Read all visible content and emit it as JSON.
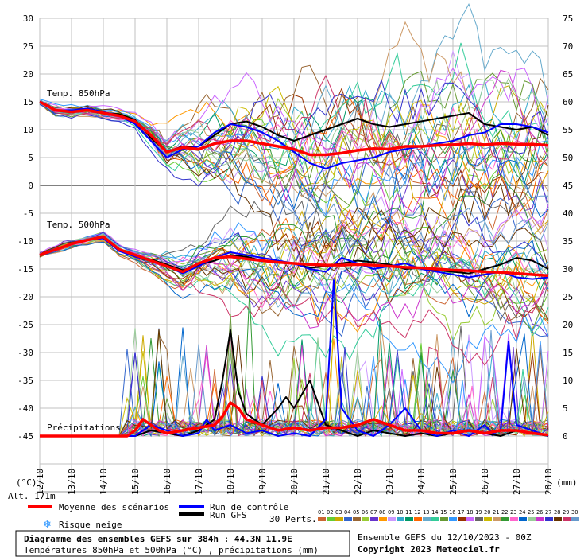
{
  "chart_data": {
    "type": "line",
    "title": "Diagramme des ensembles GEFS sur 384h : 44.3N 11.9E",
    "subtitle": "Températures 850hPa et 500hPa (°C) , précipitations (mm)",
    "left_axis": {
      "unit": "(°C)",
      "ylim": [
        -55,
        30
      ],
      "ticks": [
        30,
        25,
        20,
        15,
        10,
        5,
        0,
        -5,
        -10,
        -15,
        -20,
        -25,
        -30,
        -35,
        -40,
        -45
      ]
    },
    "right_axis": {
      "unit": "(mm)",
      "ylim": [
        -10,
        75
      ],
      "ticks": [
        75,
        70,
        65,
        60,
        55,
        50,
        45,
        40,
        35,
        30,
        25,
        20,
        15,
        10,
        5,
        0
      ]
    },
    "x_ticks": [
      "12/10",
      "13/10",
      "14/10",
      "15/10",
      "16/10",
      "17/10",
      "18/10",
      "19/10",
      "20/10",
      "21/10",
      "22/10",
      "23/10",
      "24/10",
      "25/10",
      "26/10",
      "27/10",
      "28/10"
    ],
    "altitude": "Alt. 171m",
    "panels": {
      "t850": "Temp. 850hPa",
      "t500": "Temp. 500hPa",
      "precip": "Précipitations"
    },
    "grid": true,
    "legend": {
      "mean": "Moyenne des scénarios",
      "control": "Run de contrôle",
      "gfs": "Run GFS",
      "snow": "Risque neige",
      "perts_label": "30 Perts.",
      "perts": [
        "01",
        "02",
        "03",
        "04",
        "05",
        "06",
        "07",
        "08",
        "09",
        "10",
        "11",
        "12",
        "13",
        "14",
        "15",
        "16",
        "17",
        "18",
        "19",
        "20",
        "21",
        "22",
        "23",
        "24",
        "25",
        "26",
        "27",
        "28",
        "29",
        "30"
      ]
    },
    "info": {
      "ensemble": "Ensemble GEFS du 12/10/2023 - 00Z",
      "copyright": "Copyright 2023 Meteociel.fr"
    },
    "colors": {
      "mean": "#ff0000",
      "control": "#0000ff",
      "gfs": "#000000",
      "perts": [
        "#cc6633",
        "#66cc33",
        "#ccaa00",
        "#3366cc",
        "#996633",
        "#99cc33",
        "#6633cc",
        "#ff9900",
        "#cc99ff",
        "#33aacc",
        "#009966",
        "#ff6600",
        "#66aacc",
        "#33cc99",
        "#669933",
        "#3399ff",
        "#993300",
        "#cc66ff",
        "#666666",
        "#ccbb00",
        "#cc9966",
        "#339933",
        "#ff66cc",
        "#0066cc",
        "#99cc99",
        "#cc33cc",
        "#3333cc",
        "#663300",
        "#cc3366",
        "#6699cc"
      ]
    },
    "series": {
      "t850_mean": [
        [
          0,
          15
        ],
        [
          0.5,
          13.5
        ],
        [
          1,
          13.2
        ],
        [
          1.5,
          13.5
        ],
        [
          2,
          13
        ],
        [
          2.5,
          12.5
        ],
        [
          3,
          11.5
        ],
        [
          3.5,
          9
        ],
        [
          4,
          6
        ],
        [
          4.5,
          6.8
        ],
        [
          5,
          6.5
        ],
        [
          5.5,
          7.5
        ],
        [
          6,
          8
        ],
        [
          6.5,
          8
        ],
        [
          7,
          7.5
        ],
        [
          7.5,
          7
        ],
        [
          8,
          6.5
        ],
        [
          8.5,
          5.5
        ],
        [
          9,
          5.5
        ],
        [
          9.5,
          5.8
        ],
        [
          10,
          6.3
        ],
        [
          10.5,
          6.6
        ],
        [
          11,
          6.5
        ],
        [
          11.5,
          7
        ],
        [
          12,
          7
        ],
        [
          12.5,
          7.2
        ],
        [
          13,
          7.3
        ],
        [
          13.5,
          7.5
        ],
        [
          14,
          7.3
        ],
        [
          14.5,
          7.5
        ],
        [
          15,
          7.4
        ],
        [
          15.5,
          7.4
        ],
        [
          16,
          7.2
        ]
      ],
      "t850_control": [
        [
          0,
          15
        ],
        [
          0.5,
          13.5
        ],
        [
          1,
          13.5
        ],
        [
          1.5,
          13.8
        ],
        [
          2,
          13.2
        ],
        [
          2.5,
          12.5
        ],
        [
          3,
          11
        ],
        [
          3.5,
          8
        ],
        [
          4,
          5
        ],
        [
          4.5,
          6.5
        ],
        [
          5,
          7
        ],
        [
          5.5,
          9.5
        ],
        [
          6,
          11
        ],
        [
          6.5,
          10.5
        ],
        [
          7,
          9.5
        ],
        [
          7.5,
          8
        ],
        [
          8,
          6
        ],
        [
          8.5,
          4
        ],
        [
          9,
          3
        ],
        [
          9.5,
          4
        ],
        [
          10,
          4.5
        ],
        [
          10.5,
          5
        ],
        [
          11,
          6
        ],
        [
          11.5,
          6.5
        ],
        [
          12,
          7
        ],
        [
          12.5,
          7.5
        ],
        [
          13,
          8
        ],
        [
          13.5,
          9
        ],
        [
          14,
          9.5
        ],
        [
          14.5,
          11
        ],
        [
          15,
          11
        ],
        [
          15.5,
          10.5
        ],
        [
          16,
          9.5
        ]
      ],
      "t850_gfs": [
        [
          0,
          15
        ],
        [
          0.5,
          13.5
        ],
        [
          1,
          13.3
        ],
        [
          1.5,
          13.6
        ],
        [
          2,
          13
        ],
        [
          2.5,
          12.8
        ],
        [
          3,
          11.8
        ],
        [
          3.5,
          8.5
        ],
        [
          4,
          6
        ],
        [
          4.5,
          7
        ],
        [
          5,
          7
        ],
        [
          5.5,
          9
        ],
        [
          6,
          11
        ],
        [
          6.5,
          11.5
        ],
        [
          7,
          10.5
        ],
        [
          7.5,
          9
        ],
        [
          8,
          8
        ],
        [
          8.5,
          9
        ],
        [
          9,
          10
        ],
        [
          9.5,
          11
        ],
        [
          10,
          12
        ],
        [
          10.5,
          11
        ],
        [
          11,
          10.5
        ],
        [
          11.5,
          11
        ],
        [
          12,
          11.5
        ],
        [
          12.5,
          12
        ],
        [
          13,
          12.5
        ],
        [
          13.5,
          13
        ],
        [
          14,
          11
        ],
        [
          14.5,
          10.5
        ],
        [
          15,
          10
        ],
        [
          15.5,
          10.5
        ],
        [
          16,
          9
        ]
      ],
      "t500_mean": [
        [
          0,
          -12.5
        ],
        [
          0.5,
          -11.5
        ],
        [
          1,
          -10.5
        ],
        [
          1.5,
          -9.8
        ],
        [
          2,
          -9.2
        ],
        [
          2.5,
          -11.5
        ],
        [
          3,
          -12.5
        ],
        [
          3.5,
          -13.5
        ],
        [
          4,
          -14.5
        ],
        [
          4.5,
          -15.5
        ],
        [
          5,
          -14
        ],
        [
          5.5,
          -13
        ],
        [
          6,
          -12.8
        ],
        [
          6.5,
          -13.2
        ],
        [
          7,
          -13.5
        ],
        [
          7.5,
          -13.8
        ],
        [
          8,
          -14
        ],
        [
          8.5,
          -14.2
        ],
        [
          9,
          -14.3
        ],
        [
          9.5,
          -14.3
        ],
        [
          10,
          -14.2
        ],
        [
          10.5,
          -14.3
        ],
        [
          11,
          -14.5
        ],
        [
          11.5,
          -14.7
        ],
        [
          12,
          -14.8
        ],
        [
          12.5,
          -15
        ],
        [
          13,
          -15.2
        ],
        [
          13.5,
          -15.3
        ],
        [
          14,
          -15.5
        ],
        [
          14.5,
          -15.6
        ],
        [
          15,
          -15.8
        ],
        [
          15.5,
          -16
        ],
        [
          16,
          -16.2
        ]
      ],
      "t500_control": [
        [
          0,
          -12.5
        ],
        [
          0.5,
          -11.5
        ],
        [
          1,
          -10.5
        ],
        [
          1.5,
          -9.8
        ],
        [
          2,
          -9.5
        ],
        [
          2.5,
          -11.8
        ],
        [
          3,
          -12.8
        ],
        [
          3.5,
          -13.5
        ],
        [
          4,
          -14.5
        ],
        [
          4.5,
          -15.8
        ],
        [
          5,
          -14.5
        ],
        [
          5.5,
          -13
        ],
        [
          6,
          -12
        ],
        [
          6.5,
          -12.5
        ],
        [
          7,
          -13
        ],
        [
          7.5,
          -13.5
        ],
        [
          8,
          -14
        ],
        [
          8.5,
          -15
        ],
        [
          9,
          -15.5
        ],
        [
          9.5,
          -13
        ],
        [
          10,
          -14
        ],
        [
          10.5,
          -15
        ],
        [
          11,
          -14.5
        ],
        [
          11.5,
          -14
        ],
        [
          12,
          -15
        ],
        [
          12.5,
          -15.5
        ],
        [
          13,
          -16
        ],
        [
          13.5,
          -16.5
        ],
        [
          14,
          -16
        ],
        [
          14.5,
          -15.5
        ],
        [
          15,
          -16.5
        ],
        [
          15.5,
          -16.8
        ],
        [
          16,
          -16.5
        ]
      ],
      "t500_gfs": [
        [
          0,
          -12.5
        ],
        [
          0.5,
          -11.5
        ],
        [
          1,
          -10.5
        ],
        [
          1.5,
          -9.8
        ],
        [
          2,
          -9.3
        ],
        [
          2.5,
          -11.6
        ],
        [
          3,
          -12.6
        ],
        [
          3.5,
          -13.3
        ],
        [
          4,
          -14.2
        ],
        [
          4.5,
          -15.2
        ],
        [
          5,
          -14.3
        ],
        [
          5.5,
          -13.5
        ],
        [
          6,
          -12.5
        ],
        [
          6.5,
          -12.8
        ],
        [
          7,
          -13.5
        ],
        [
          7.5,
          -13.8
        ],
        [
          8,
          -14
        ],
        [
          8.5,
          -14.8
        ],
        [
          9,
          -14.5
        ],
        [
          9.5,
          -14
        ],
        [
          10,
          -13.5
        ],
        [
          10.5,
          -13.8
        ],
        [
          11,
          -14.2
        ],
        [
          11.5,
          -15
        ],
        [
          12,
          -14.8
        ],
        [
          12.5,
          -15.2
        ],
        [
          13,
          -15.5
        ],
        [
          13.5,
          -15.8
        ],
        [
          14,
          -15
        ],
        [
          14.5,
          -14.2
        ],
        [
          15,
          -13
        ],
        [
          15.5,
          -13.5
        ],
        [
          16,
          -15
        ]
      ],
      "precip_mean": [
        [
          0,
          0
        ],
        [
          1,
          0
        ],
        [
          2,
          0
        ],
        [
          2.75,
          0
        ],
        [
          3,
          1
        ],
        [
          3.25,
          3
        ],
        [
          3.5,
          2
        ],
        [
          3.75,
          1
        ],
        [
          4,
          0.5
        ],
        [
          4.5,
          1
        ],
        [
          5,
          1.5
        ],
        [
          5.5,
          2
        ],
        [
          5.75,
          3.5
        ],
        [
          6,
          6
        ],
        [
          6.25,
          5
        ],
        [
          6.5,
          3
        ],
        [
          7,
          2
        ],
        [
          7.5,
          1
        ],
        [
          8,
          1.5
        ],
        [
          8.5,
          1
        ],
        [
          9,
          1.5
        ],
        [
          9.5,
          1.5
        ],
        [
          10,
          2
        ],
        [
          10.5,
          3
        ],
        [
          11,
          2
        ],
        [
          11.5,
          1
        ],
        [
          12,
          1
        ],
        [
          12.5,
          0.5
        ],
        [
          13,
          0.5
        ],
        [
          13.5,
          1
        ],
        [
          14,
          0.5
        ],
        [
          14.5,
          1
        ],
        [
          15,
          1
        ],
        [
          15.5,
          0.5
        ],
        [
          16,
          0.2
        ]
      ],
      "precip_control": [
        [
          0,
          0
        ],
        [
          1,
          0
        ],
        [
          2,
          0
        ],
        [
          3,
          0
        ],
        [
          3.5,
          2
        ],
        [
          4,
          1
        ],
        [
          4.5,
          0
        ],
        [
          5,
          0.5
        ],
        [
          5.25,
          3
        ],
        [
          5.5,
          1
        ],
        [
          6,
          2
        ],
        [
          6.5,
          0.5
        ],
        [
          7,
          1
        ],
        [
          7.5,
          0
        ],
        [
          8,
          0.5
        ],
        [
          8.5,
          0
        ],
        [
          9,
          3
        ],
        [
          9.25,
          28
        ],
        [
          9.5,
          5
        ],
        [
          10,
          1
        ],
        [
          10.5,
          0
        ],
        [
          11,
          2
        ],
        [
          11.5,
          5
        ],
        [
          12,
          1
        ],
        [
          12.5,
          0
        ],
        [
          13,
          1
        ],
        [
          13.5,
          0
        ],
        [
          14,
          2
        ],
        [
          14.25,
          0.5
        ],
        [
          14.5,
          1
        ],
        [
          14.75,
          17
        ],
        [
          15,
          2
        ],
        [
          15.5,
          1
        ],
        [
          16,
          0
        ]
      ],
      "precip_gfs": [
        [
          0,
          0
        ],
        [
          1,
          0
        ],
        [
          2,
          0
        ],
        [
          3,
          0
        ],
        [
          3.5,
          1
        ],
        [
          4,
          0.5
        ],
        [
          4.5,
          0
        ],
        [
          5,
          1
        ],
        [
          5.5,
          3
        ],
        [
          5.75,
          10
        ],
        [
          6,
          19
        ],
        [
          6.25,
          8
        ],
        [
          6.5,
          4
        ],
        [
          7,
          2
        ],
        [
          7.5,
          5
        ],
        [
          7.75,
          7
        ],
        [
          8,
          5
        ],
        [
          8.5,
          10
        ],
        [
          8.75,
          6
        ],
        [
          9,
          2
        ],
        [
          9.5,
          1
        ],
        [
          10,
          0
        ],
        [
          10.5,
          1
        ],
        [
          11,
          0.5
        ],
        [
          11.5,
          0
        ],
        [
          12,
          0.5
        ],
        [
          12.5,
          0
        ],
        [
          13,
          0.5
        ],
        [
          13.5,
          1
        ],
        [
          14,
          0.5
        ],
        [
          14.5,
          0
        ],
        [
          15,
          1
        ],
        [
          15.5,
          0.5
        ],
        [
          16,
          0
        ]
      ],
      "precip_spikes": [
        [
          5.5,
          12
        ],
        [
          5.9,
          10
        ],
        [
          6,
          22
        ],
        [
          6.6,
          26
        ],
        [
          7,
          10
        ],
        [
          8,
          14
        ],
        [
          8.6,
          9
        ],
        [
          9.3,
          29
        ],
        [
          9.6,
          16
        ],
        [
          10.3,
          9
        ],
        [
          10.7,
          21
        ],
        [
          11.4,
          12
        ],
        [
          11.9,
          8
        ],
        [
          12.2,
          10
        ],
        [
          12.8,
          8
        ],
        [
          13.3,
          10
        ],
        [
          13.6,
          9
        ],
        [
          14.2,
          19
        ],
        [
          14.9,
          16
        ],
        [
          15.2,
          12
        ],
        [
          15.5,
          9
        ]
      ]
    }
  }
}
